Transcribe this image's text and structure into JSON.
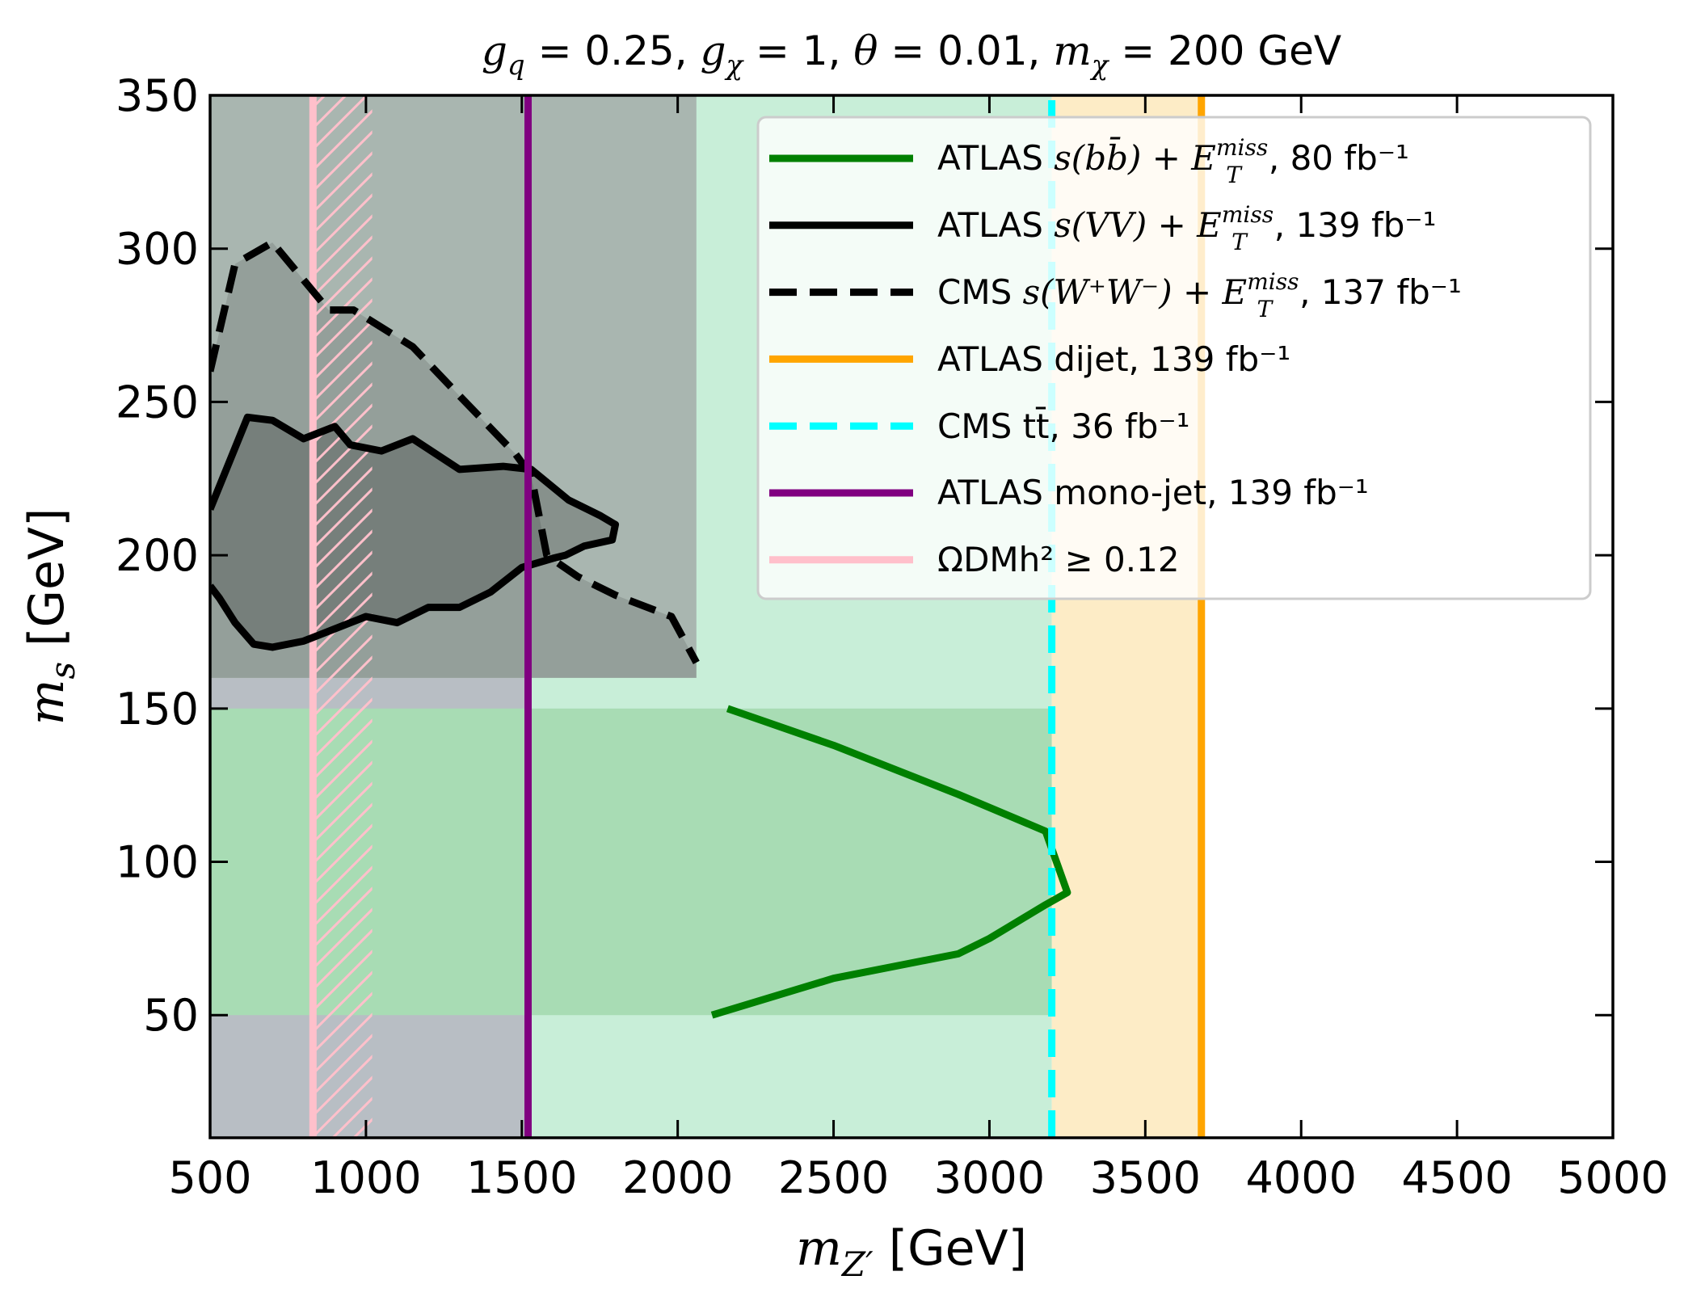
{
  "chart_data": {
    "type": "line",
    "title": {
      "gq": "0.25",
      "gchi": "1",
      "theta": "0.01",
      "mchi": "200",
      "unit": "GeV"
    },
    "xlabel": {
      "symbol": "m",
      "sub": "Z′",
      "unit": "[GeV]"
    },
    "ylabel": {
      "symbol": "m",
      "sub": "s",
      "unit": "[GeV]"
    },
    "xlim": [
      500,
      5000
    ],
    "ylim": [
      10,
      350
    ],
    "xticks": [
      500,
      1000,
      1500,
      2000,
      2500,
      3000,
      3500,
      4000,
      4500,
      5000
    ],
    "yticks": [
      50,
      100,
      150,
      200,
      250,
      300,
      350
    ],
    "shaded_regions": [
      {
        "name": "cms-ww-excluded-region",
        "color": "#b8bec4",
        "x": [
          500,
          1520
        ],
        "y": [
          10,
          350
        ]
      },
      {
        "name": "monojet-excluded-region",
        "color": "#c8eed8",
        "x": [
          1520,
          3200
        ],
        "y": [
          10,
          350
        ]
      },
      {
        "name": "dijet-excluded-region",
        "color": "#fdecc6",
        "x": [
          3200,
          3680
        ],
        "y": [
          10,
          350
        ]
      },
      {
        "name": "bb-mass-range-band",
        "color": "#a8dcb4",
        "x": [
          500,
          3200
        ],
        "y": [
          50,
          150
        ]
      },
      {
        "name": "vv-mass-range-band",
        "color": "#a9b6b0",
        "x": [
          500,
          2060
        ],
        "y": [
          160,
          350
        ]
      }
    ],
    "series": [
      {
        "name": "ATLAS s(bb̄)+ETmiss",
        "color": "#008000",
        "dash": "solid",
        "x": [
          2160,
          2500,
          2900,
          3180,
          3250,
          3180,
          3000,
          2900,
          2500,
          2110
        ],
        "y": [
          150,
          138,
          122,
          110,
          90,
          86,
          75,
          70,
          62,
          50
        ]
      },
      {
        "name": "ATLAS s(VV)+ETmiss",
        "color": "#000000",
        "dash": "solid",
        "x": [
          500,
          620,
          700,
          800,
          900,
          950,
          1050,
          1150,
          1300,
          1440,
          1530,
          1650,
          1750,
          1800,
          1790,
          1700,
          1640,
          1600,
          1500,
          1400,
          1300,
          1200,
          1100,
          1000,
          900,
          800,
          700,
          640,
          580,
          530,
          500
        ],
        "y": [
          215,
          245,
          244,
          238,
          242,
          236,
          234,
          238,
          228,
          229,
          228,
          218,
          213,
          210,
          205,
          203,
          200,
          199,
          196,
          188,
          183,
          183,
          178,
          180,
          176,
          172,
          170,
          171,
          178,
          186,
          190
        ]
      },
      {
        "name": "CMS s(W+W−)+ETmiss",
        "color": "#000000",
        "dash": "dashed",
        "x": [
          500,
          580,
          700,
          880,
          960,
          1150,
          1300,
          1480,
          1530,
          1580,
          1680,
          1800,
          1980,
          2060
        ],
        "y": [
          260,
          295,
          302,
          280,
          280,
          268,
          252,
          233,
          226,
          200,
          193,
          187,
          180,
          165
        ]
      },
      {
        "name": "ATLAS dijet",
        "color": "#ffa500",
        "dash": "solid",
        "x": [
          3680,
          3680
        ],
        "y": [
          10,
          350
        ]
      },
      {
        "name": "CMS tt̄",
        "color": "#00ffff",
        "dash": "dashed",
        "x": [
          3200,
          3200
        ],
        "y": [
          10,
          350
        ]
      },
      {
        "name": "ATLAS mono-jet",
        "color": "#800080",
        "dash": "solid",
        "x": [
          1520,
          1520
        ],
        "y": [
          10,
          350
        ]
      },
      {
        "name": "Omega_DM h^2 >= 0.12",
        "color": "#ffc0cb",
        "dash": "solid",
        "x": [
          830,
          830
        ],
        "y": [
          10,
          350
        ],
        "hatch_x": [
          830,
          1020
        ]
      }
    ],
    "legend": {
      "placement": "top-right",
      "entries": [
        {
          "color": "#008000",
          "dash": "solid",
          "experiment": "ATLAS",
          "signal": "s(bb̄)",
          "met": "ETmiss",
          "lumi": ", 80 fb⁻¹"
        },
        {
          "color": "#000000",
          "dash": "solid",
          "experiment": "ATLAS",
          "signal": "s(VV)",
          "met": "ETmiss",
          "lumi": ", 139 fb⁻¹"
        },
        {
          "color": "#000000",
          "dash": "dashed",
          "experiment": "CMS",
          "signal": "s(W⁺W⁻)",
          "met": "ETmiss",
          "lumi": ", 137 fb⁻¹"
        },
        {
          "color": "#ffa500",
          "dash": "solid",
          "text": "ATLAS dijet, 139 fb⁻¹"
        },
        {
          "color": "#00ffff",
          "dash": "dashed",
          "text": "CMS tt̄, 36 fb⁻¹"
        },
        {
          "color": "#800080",
          "dash": "solid",
          "text": "ATLAS mono-jet, 139 fb⁻¹"
        },
        {
          "color": "#ffc0cb",
          "dash": "solid",
          "text": "ΩDMh² ≥ 0.12"
        }
      ]
    }
  }
}
